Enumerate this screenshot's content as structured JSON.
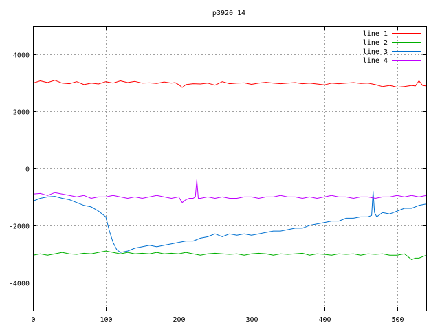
{
  "chart_data": {
    "type": "line",
    "title": "p3920_14",
    "xlabel": "",
    "ylabel": "",
    "xlim": [
      0,
      540
    ],
    "ylim": [
      -5000,
      5000
    ],
    "grid": true,
    "legend_position": "top-right",
    "x_ticks": [
      0,
      100,
      200,
      300,
      400,
      500
    ],
    "y_ticks": [
      -4000,
      -2000,
      0,
      2000,
      4000
    ],
    "series": [
      {
        "name": "line 1",
        "color": "#ff0000",
        "x": [
          0,
          10,
          20,
          30,
          40,
          50,
          60,
          70,
          80,
          90,
          100,
          110,
          120,
          130,
          140,
          150,
          160,
          170,
          180,
          190,
          195,
          200,
          205,
          210,
          220,
          230,
          240,
          250,
          260,
          270,
          280,
          290,
          300,
          310,
          320,
          330,
          340,
          350,
          360,
          370,
          380,
          390,
          400,
          410,
          420,
          430,
          440,
          450,
          460,
          470,
          480,
          490,
          500,
          510,
          520,
          525,
          530,
          535,
          540
        ],
        "y": [
          3000,
          3080,
          3020,
          3100,
          3000,
          2980,
          3050,
          2950,
          3000,
          2970,
          3050,
          3000,
          3080,
          3020,
          3060,
          3000,
          3010,
          2990,
          3040,
          3000,
          3020,
          2950,
          2850,
          2950,
          2980,
          2970,
          3000,
          2930,
          3050,
          2980,
          3000,
          3010,
          2960,
          3000,
          3030,
          3000,
          2980,
          3000,
          3020,
          2980,
          3000,
          2970,
          2940,
          3000,
          2980,
          3000,
          3020,
          2990,
          3000,
          2950,
          2880,
          2920,
          2860,
          2880,
          2920,
          2900,
          3080,
          2920,
          2900
        ]
      },
      {
        "name": "line 2",
        "color": "#00b000",
        "x": [
          0,
          10,
          20,
          30,
          40,
          50,
          60,
          70,
          80,
          90,
          100,
          110,
          120,
          130,
          140,
          150,
          160,
          170,
          180,
          190,
          200,
          210,
          220,
          230,
          240,
          250,
          260,
          270,
          280,
          290,
          300,
          310,
          320,
          330,
          340,
          350,
          360,
          370,
          380,
          390,
          400,
          410,
          420,
          430,
          440,
          450,
          460,
          470,
          480,
          490,
          500,
          510,
          520,
          525,
          530,
          540
        ],
        "y": [
          -3050,
          -3000,
          -3050,
          -3000,
          -2950,
          -3000,
          -3020,
          -2980,
          -3000,
          -2950,
          -2900,
          -2950,
          -3000,
          -2950,
          -3000,
          -2980,
          -3000,
          -2950,
          -3000,
          -2980,
          -3000,
          -2950,
          -3000,
          -3050,
          -3000,
          -2980,
          -3000,
          -3020,
          -3000,
          -3050,
          -3000,
          -2980,
          -3000,
          -3050,
          -3000,
          -3020,
          -3000,
          -2980,
          -3050,
          -3000,
          -3020,
          -3050,
          -3000,
          -3020,
          -3000,
          -3050,
          -3000,
          -3020,
          -3000,
          -3050,
          -3050,
          -3000,
          -3200,
          -3150,
          -3150,
          -3050
        ]
      },
      {
        "name": "line 3",
        "color": "#0070d0",
        "x": [
          0,
          10,
          20,
          30,
          40,
          50,
          60,
          70,
          80,
          90,
          100,
          105,
          110,
          115,
          120,
          130,
          140,
          150,
          160,
          170,
          180,
          190,
          200,
          210,
          220,
          230,
          240,
          250,
          260,
          270,
          280,
          290,
          300,
          310,
          320,
          330,
          340,
          350,
          360,
          370,
          380,
          390,
          400,
          410,
          420,
          430,
          440,
          450,
          460,
          465,
          467,
          469,
          472,
          480,
          490,
          500,
          510,
          520,
          530,
          540
        ],
        "y": [
          -1150,
          -1050,
          -1000,
          -980,
          -1050,
          -1100,
          -1200,
          -1300,
          -1350,
          -1500,
          -1700,
          -2200,
          -2600,
          -2850,
          -2950,
          -2900,
          -2800,
          -2750,
          -2700,
          -2750,
          -2700,
          -2650,
          -2600,
          -2550,
          -2550,
          -2450,
          -2400,
          -2300,
          -2400,
          -2300,
          -2350,
          -2300,
          -2350,
          -2300,
          -2250,
          -2200,
          -2200,
          -2150,
          -2100,
          -2100,
          -2000,
          -1950,
          -1900,
          -1850,
          -1850,
          -1750,
          -1750,
          -1700,
          -1700,
          -1650,
          -800,
          -1550,
          -1700,
          -1550,
          -1600,
          -1500,
          -1400,
          -1400,
          -1300,
          -1250
        ]
      },
      {
        "name": "line 4",
        "color": "#c000ff",
        "x": [
          0,
          10,
          20,
          30,
          40,
          50,
          60,
          70,
          80,
          90,
          100,
          110,
          120,
          130,
          140,
          150,
          160,
          170,
          180,
          190,
          200,
          205,
          210,
          215,
          220,
          223,
          225,
          227,
          230,
          240,
          250,
          260,
          270,
          280,
          290,
          300,
          310,
          320,
          330,
          340,
          350,
          360,
          370,
          380,
          390,
          400,
          410,
          420,
          430,
          440,
          450,
          460,
          470,
          480,
          490,
          500,
          510,
          520,
          530,
          540
        ],
        "y": [
          -900,
          -880,
          -950,
          -850,
          -900,
          -950,
          -1000,
          -950,
          -1050,
          -1000,
          -1000,
          -950,
          -1000,
          -1050,
          -1000,
          -1050,
          -1000,
          -950,
          -1000,
          -1050,
          -1000,
          -1200,
          -1100,
          -1050,
          -1050,
          -1000,
          -400,
          -1050,
          -1050,
          -1000,
          -1050,
          -1000,
          -1050,
          -1050,
          -1000,
          -1000,
          -1050,
          -1000,
          -1000,
          -950,
          -1000,
          -1000,
          -1050,
          -1000,
          -1050,
          -1000,
          -950,
          -1000,
          -1000,
          -1050,
          -1000,
          -1000,
          -1050,
          -1000,
          -1000,
          -950,
          -1000,
          -950,
          -1000,
          -950
        ]
      }
    ]
  }
}
